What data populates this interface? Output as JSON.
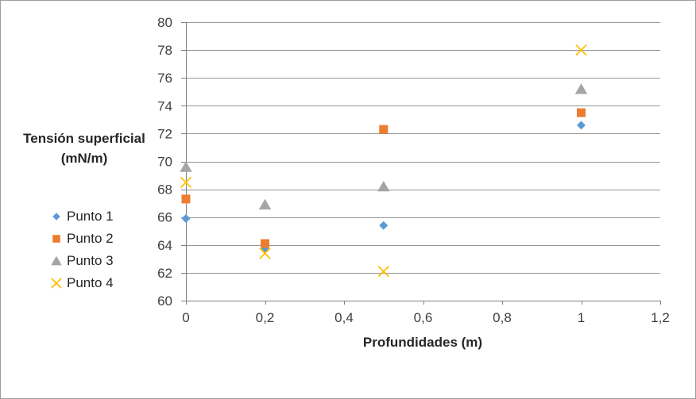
{
  "chart_data": {
    "type": "scatter",
    "title": "",
    "xlabel": "Profundidades (m)",
    "ylabel": "Tensión superficial (mN/m)",
    "ylabel_lines": [
      "Tensión superficial",
      "(mN/m)"
    ],
    "xlim": [
      0,
      1.2
    ],
    "ylim": [
      60,
      80
    ],
    "xticks": [
      0,
      0.2,
      0.4,
      0.6,
      0.8,
      1,
      1.2
    ],
    "xtick_labels": [
      "0",
      "0,2",
      "0,4",
      "0,6",
      "0,8",
      "1",
      "1,2"
    ],
    "yticks": [
      60,
      62,
      64,
      66,
      68,
      70,
      72,
      74,
      76,
      78,
      80
    ],
    "ytick_labels": [
      "60",
      "62",
      "64",
      "66",
      "68",
      "70",
      "72",
      "74",
      "76",
      "78",
      "80"
    ],
    "grid": true,
    "legend_position": "left",
    "x": [
      0,
      0.2,
      0.5,
      1
    ],
    "series": [
      {
        "name": "Punto 1",
        "marker": "diamond",
        "color": "#5B9BD5",
        "values": [
          65.9,
          63.7,
          65.4,
          72.6
        ]
      },
      {
        "name": "Punto 2",
        "marker": "square",
        "color": "#ED7D31",
        "values": [
          67.3,
          64.1,
          72.3,
          73.5
        ]
      },
      {
        "name": "Punto 3",
        "marker": "triangle",
        "color": "#A5A5A5",
        "values": [
          69.6,
          66.9,
          68.2,
          75.2
        ]
      },
      {
        "name": "Punto 4",
        "marker": "x",
        "color": "#FFC000",
        "values": [
          68.5,
          63.4,
          62.1,
          78.0
        ]
      }
    ]
  },
  "colors": {
    "gridline": "#969696",
    "axis": "#808080",
    "tick_text": "#3f3f3f",
    "title_text": "#262626",
    "chart_border": "#9e9e9e",
    "background": "#ffffff"
  }
}
